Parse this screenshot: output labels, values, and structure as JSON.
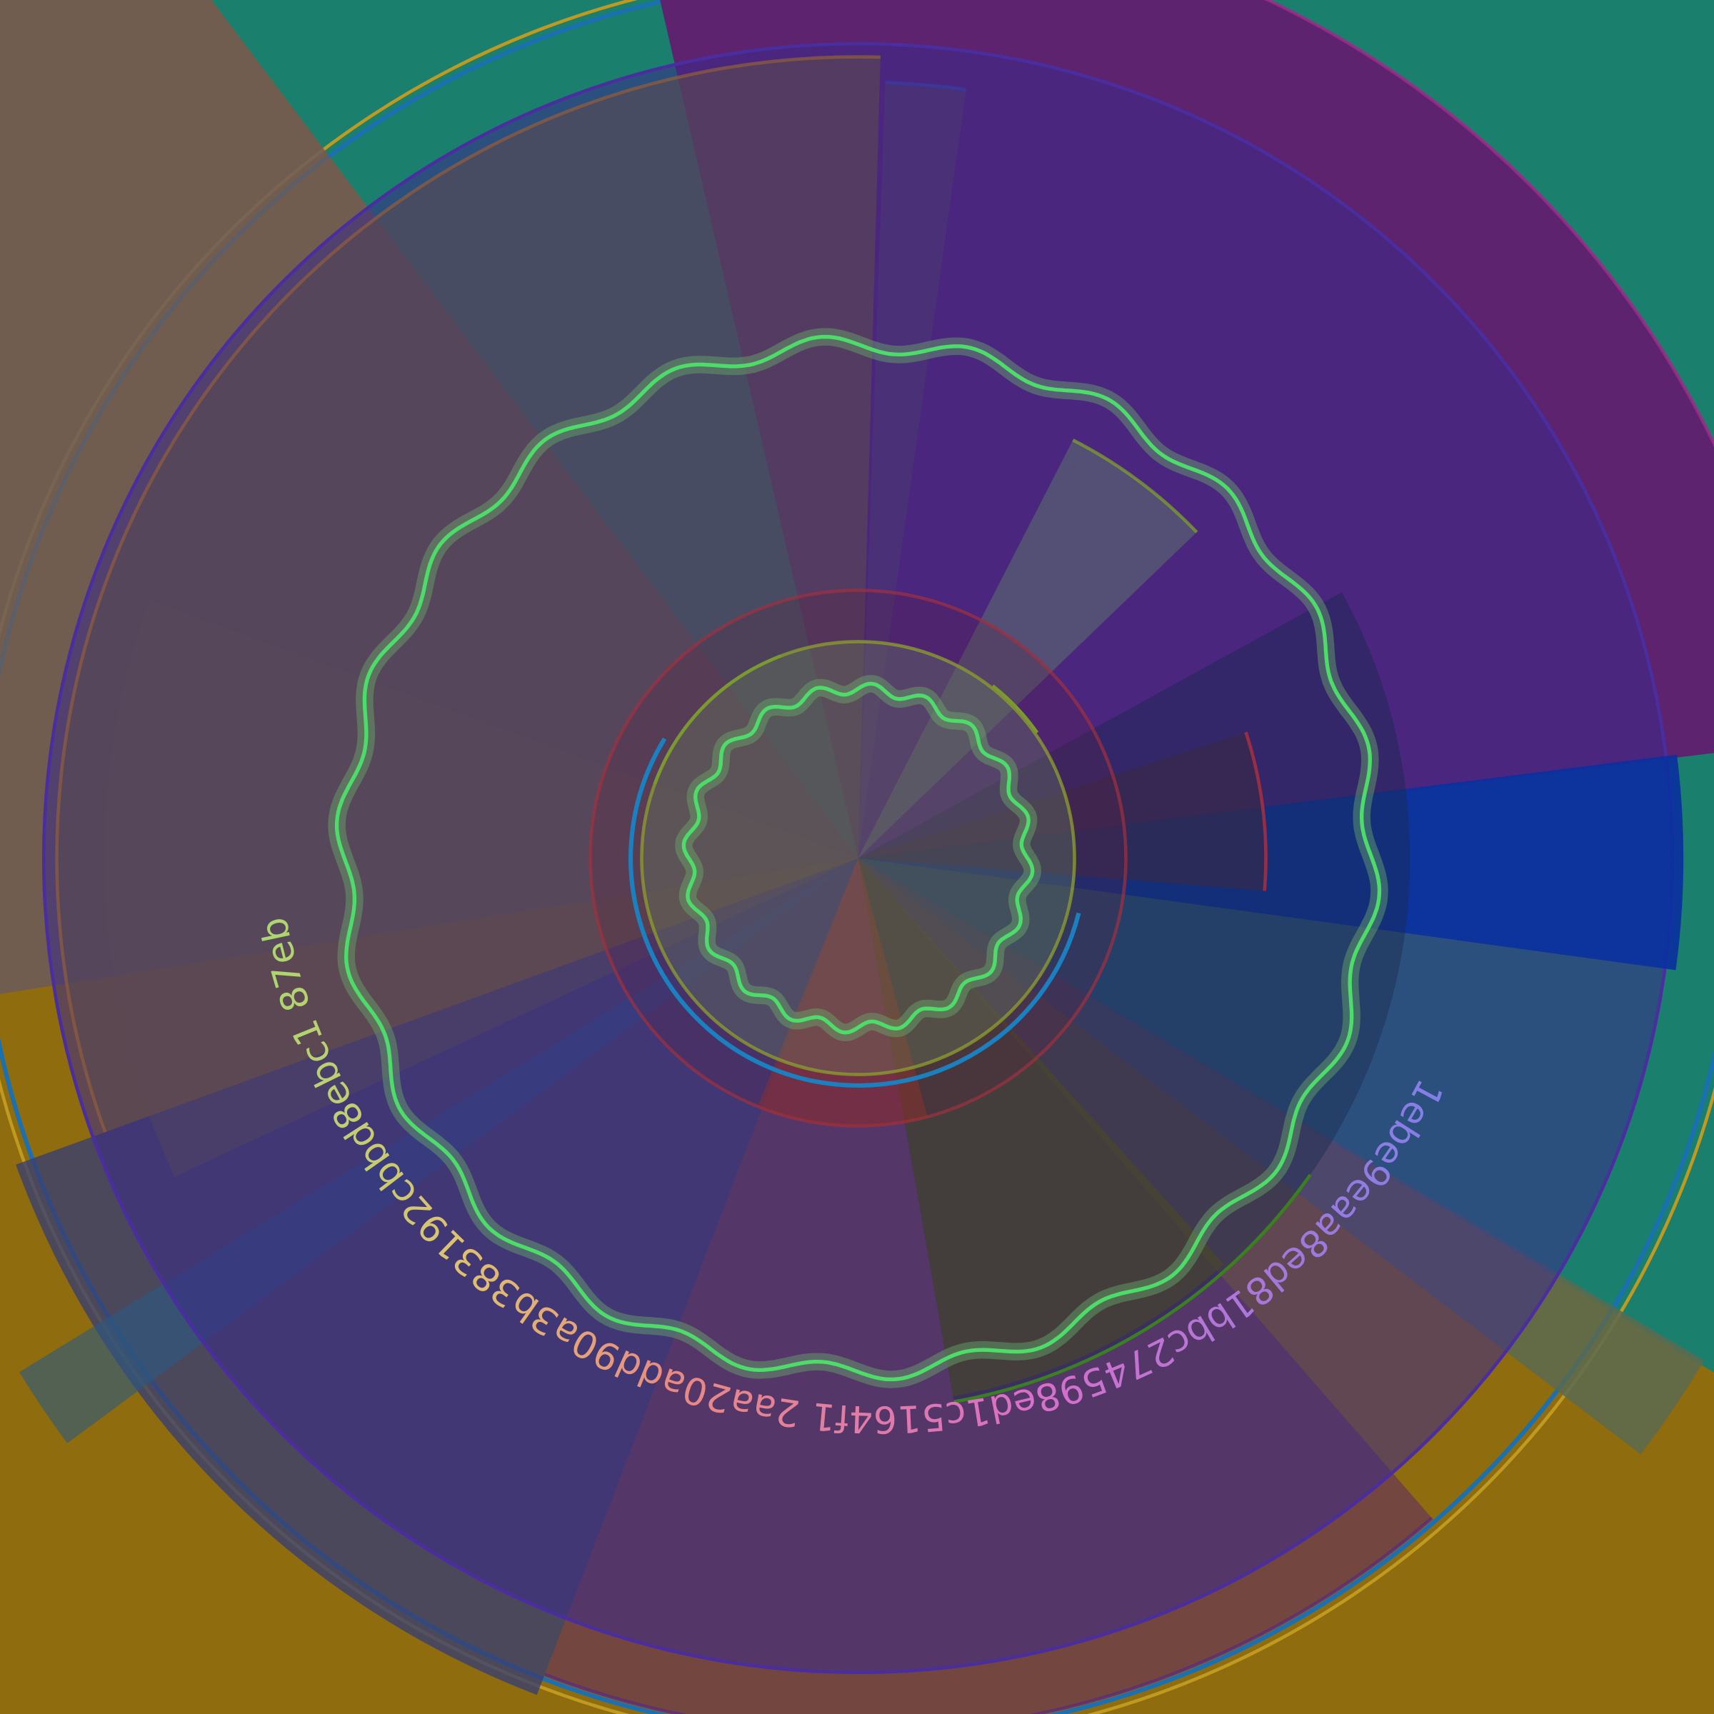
{
  "artwork": {
    "ring_text": "1ebe9eaa8ed81bbc274598ed1c5164f1 2aa20add90a3b383192cbbd8ebc1 87eb",
    "colors": {
      "background_gold": "#8f6c0e",
      "background_teal": "#1b7f6e",
      "purple": "#5e236f",
      "violet": "#3b2a8a",
      "blue": "#0a30a0",
      "wave_green": "#4ddc6a",
      "text_start": "#7f7fe8",
      "text_mid": "#d86fc8",
      "text_end": "#a8d870"
    }
  }
}
